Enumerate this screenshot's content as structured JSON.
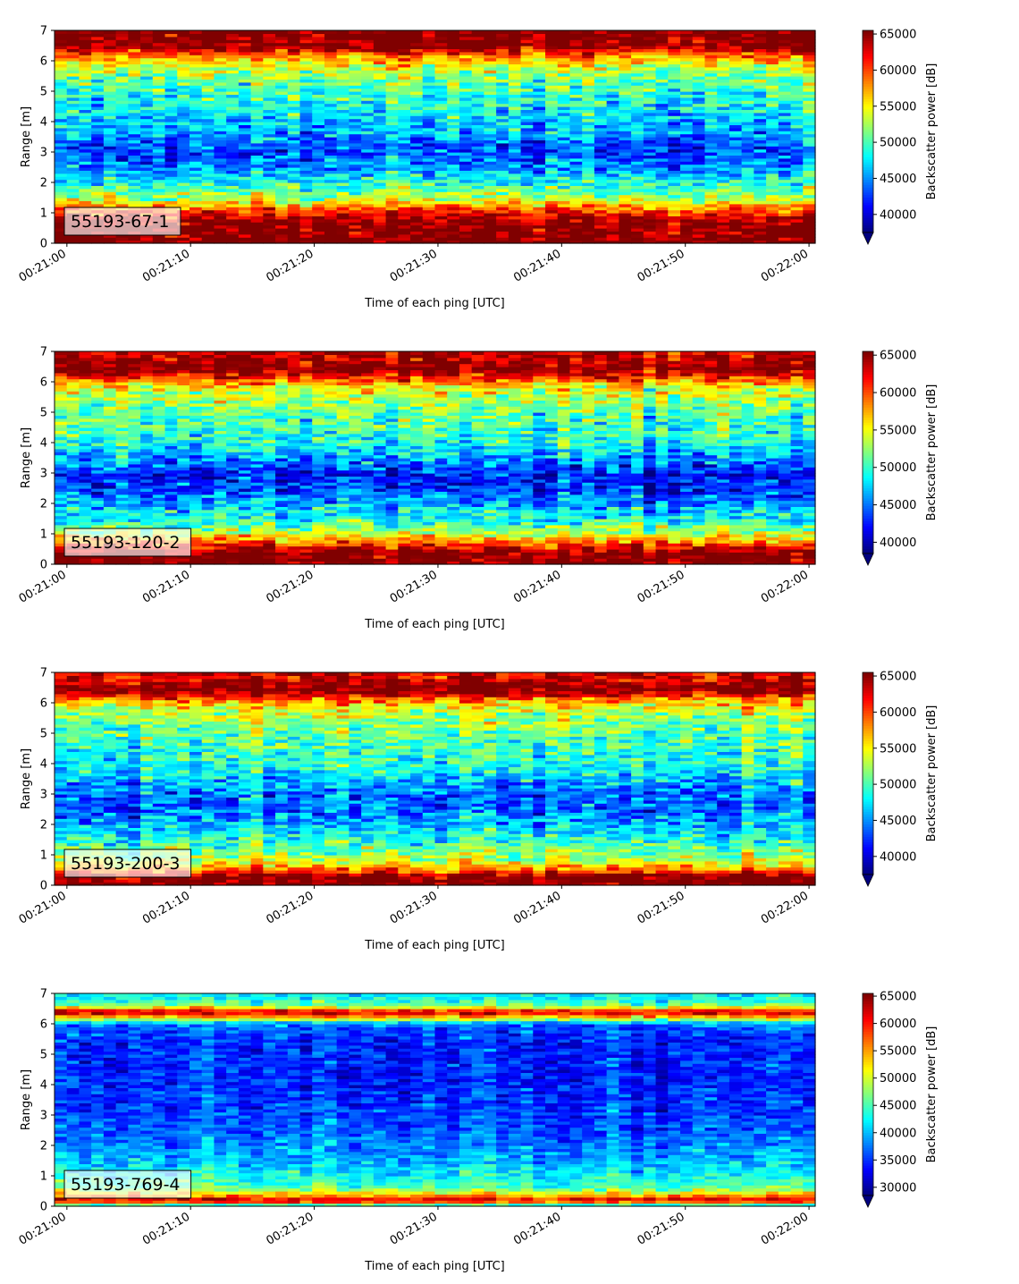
{
  "chart_data": [
    {
      "type": "heatmap",
      "label": "55193-67-1",
      "xlabel": "Time of each ping [UTC]",
      "ylabel": "Range [m]",
      "x_range": [
        "00:21:00",
        "00:22:00"
      ],
      "xticks": [
        "00:21:00",
        "00:21:10",
        "00:21:20",
        "00:21:30",
        "00:21:40",
        "00:21:50",
        "00:22:00"
      ],
      "ylim": [
        0,
        7
      ],
      "yticks": [
        "0",
        "1",
        "2",
        "3",
        "4",
        "5",
        "6",
        "7"
      ],
      "colorbar": {
        "label": "Backscatter power [dB]",
        "ticks": [
          40000,
          45000,
          50000,
          55000,
          60000,
          65000
        ],
        "vmin": 37500,
        "vmax": 65500,
        "extend": "min"
      },
      "profile": [
        {
          "y": 0.1,
          "v": 66000
        },
        {
          "y": 0.3,
          "v": 66000
        },
        {
          "y": 0.6,
          "v": 66000
        },
        {
          "y": 0.9,
          "v": 63000
        },
        {
          "y": 1.1,
          "v": 60000
        },
        {
          "y": 1.4,
          "v": 54000
        },
        {
          "y": 1.8,
          "v": 50000
        },
        {
          "y": 2.2,
          "v": 47000
        },
        {
          "y": 2.6,
          "v": 44500
        },
        {
          "y": 3.0,
          "v": 42500
        },
        {
          "y": 3.3,
          "v": 43500
        },
        {
          "y": 3.7,
          "v": 46000
        },
        {
          "y": 4.1,
          "v": 46500
        },
        {
          "y": 4.5,
          "v": 48000
        },
        {
          "y": 5.0,
          "v": 49500
        },
        {
          "y": 5.5,
          "v": 51500
        },
        {
          "y": 5.9,
          "v": 55000
        },
        {
          "y": 6.2,
          "v": 59000
        },
        {
          "y": 6.5,
          "v": 66000
        },
        {
          "y": 6.9,
          "v": 66000
        }
      ],
      "noise": 5000
    },
    {
      "type": "heatmap",
      "label": "55193-120-2",
      "xlabel": "Time of each ping [UTC]",
      "ylabel": "Range [m]",
      "x_range": [
        "00:21:00",
        "00:22:00"
      ],
      "xticks": [
        "00:21:00",
        "00:21:10",
        "00:21:20",
        "00:21:30",
        "00:21:40",
        "00:21:50",
        "00:22:00"
      ],
      "ylim": [
        0,
        7
      ],
      "yticks": [
        "0",
        "1",
        "2",
        "3",
        "4",
        "5",
        "6",
        "7"
      ],
      "colorbar": {
        "label": "Backscatter power [dB]",
        "ticks": [
          40000,
          45000,
          50000,
          55000,
          60000,
          65000
        ],
        "vmin": 38500,
        "vmax": 65500,
        "extend": "min"
      },
      "profile": [
        {
          "y": 0.1,
          "v": 66000
        },
        {
          "y": 0.4,
          "v": 66000
        },
        {
          "y": 0.7,
          "v": 60000
        },
        {
          "y": 1.0,
          "v": 54000
        },
        {
          "y": 1.4,
          "v": 50000
        },
        {
          "y": 1.8,
          "v": 47500
        },
        {
          "y": 2.2,
          "v": 45000
        },
        {
          "y": 2.6,
          "v": 43000
        },
        {
          "y": 3.0,
          "v": 42000
        },
        {
          "y": 3.4,
          "v": 45500
        },
        {
          "y": 3.9,
          "v": 48500
        },
        {
          "y": 4.4,
          "v": 50000
        },
        {
          "y": 4.9,
          "v": 51000
        },
        {
          "y": 5.4,
          "v": 52500
        },
        {
          "y": 5.8,
          "v": 55000
        },
        {
          "y": 6.1,
          "v": 60000
        },
        {
          "y": 6.4,
          "v": 66000
        },
        {
          "y": 6.9,
          "v": 64000
        }
      ],
      "noise": 5000
    },
    {
      "type": "heatmap",
      "label": "55193-200-3",
      "xlabel": "Time of each ping [UTC]",
      "ylabel": "Range [m]",
      "x_range": [
        "00:21:00",
        "00:22:00"
      ],
      "xticks": [
        "00:21:00",
        "00:21:10",
        "00:21:20",
        "00:21:30",
        "00:21:40",
        "00:21:50",
        "00:22:00"
      ],
      "ylim": [
        0,
        7
      ],
      "yticks": [
        "0",
        "1",
        "2",
        "3",
        "4",
        "5",
        "6",
        "7"
      ],
      "colorbar": {
        "label": "Backscatter power [dB]",
        "ticks": [
          40000,
          45000,
          50000,
          55000,
          60000,
          65000
        ],
        "vmin": 37500,
        "vmax": 65500,
        "extend": "min"
      },
      "profile": [
        {
          "y": 0.1,
          "v": 66000
        },
        {
          "y": 0.3,
          "v": 66000
        },
        {
          "y": 0.5,
          "v": 60000
        },
        {
          "y": 0.8,
          "v": 53500
        },
        {
          "y": 1.2,
          "v": 51000
        },
        {
          "y": 1.6,
          "v": 48500
        },
        {
          "y": 2.0,
          "v": 46000
        },
        {
          "y": 2.4,
          "v": 44500
        },
        {
          "y": 2.8,
          "v": 43500
        },
        {
          "y": 3.2,
          "v": 45000
        },
        {
          "y": 3.7,
          "v": 47500
        },
        {
          "y": 4.2,
          "v": 49000
        },
        {
          "y": 4.8,
          "v": 50000
        },
        {
          "y": 5.3,
          "v": 51500
        },
        {
          "y": 5.8,
          "v": 54000
        },
        {
          "y": 6.1,
          "v": 58000
        },
        {
          "y": 6.4,
          "v": 66000
        },
        {
          "y": 6.9,
          "v": 63000
        }
      ],
      "noise": 5000
    },
    {
      "type": "heatmap",
      "label": "55193-769-4",
      "xlabel": "Time of each ping [UTC]",
      "ylabel": "Range [m]",
      "x_range": [
        "00:21:00",
        "00:22:00"
      ],
      "xticks": [
        "00:21:00",
        "00:21:10",
        "00:21:20",
        "00:21:30",
        "00:21:40",
        "00:21:50",
        "00:22:00"
      ],
      "ylim": [
        0,
        7
      ],
      "yticks": [
        "0",
        "1",
        "2",
        "3",
        "4",
        "5",
        "6",
        "7"
      ],
      "colorbar": {
        "label": "Backscatter power [dB]",
        "ticks": [
          30000,
          35000,
          40000,
          45000,
          50000,
          55000,
          60000,
          65000
        ],
        "vmin": 28500,
        "vmax": 65500,
        "extend": "min"
      },
      "profile": [
        {
          "y": 0.05,
          "v": 45000
        },
        {
          "y": 0.2,
          "v": 64000
        },
        {
          "y": 0.35,
          "v": 55000
        },
        {
          "y": 0.6,
          "v": 46000
        },
        {
          "y": 1.0,
          "v": 42500
        },
        {
          "y": 1.5,
          "v": 40000
        },
        {
          "y": 2.0,
          "v": 38000
        },
        {
          "y": 2.5,
          "v": 36500
        },
        {
          "y": 3.0,
          "v": 35500
        },
        {
          "y": 3.5,
          "v": 35000
        },
        {
          "y": 4.0,
          "v": 34500
        },
        {
          "y": 4.5,
          "v": 34500
        },
        {
          "y": 5.0,
          "v": 34000
        },
        {
          "y": 5.5,
          "v": 34500
        },
        {
          "y": 6.0,
          "v": 37000
        },
        {
          "y": 6.2,
          "v": 52000
        },
        {
          "y": 6.4,
          "v": 64000
        },
        {
          "y": 6.6,
          "v": 47000
        },
        {
          "y": 6.9,
          "v": 42000
        }
      ],
      "noise": 4500
    }
  ]
}
